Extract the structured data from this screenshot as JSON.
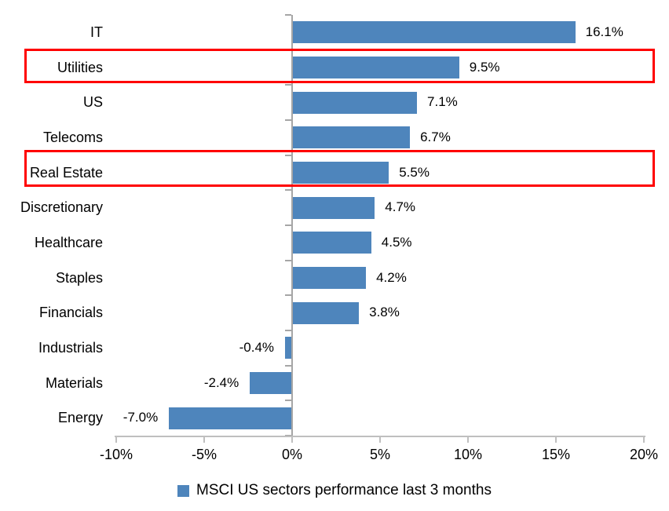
{
  "chart_data": {
    "type": "bar",
    "orientation": "horizontal",
    "title": "",
    "categories": [
      "IT",
      "Utilities",
      "US",
      "Telecoms",
      "Real Estate",
      "Discretionary",
      "Healthcare",
      "Staples",
      "Financials",
      "Industrials",
      "Materials",
      "Energy"
    ],
    "values": [
      16.1,
      9.5,
      7.1,
      6.7,
      5.5,
      4.7,
      4.5,
      4.2,
      3.8,
      -0.4,
      -2.4,
      -7.0
    ],
    "data_labels": [
      "16.1%",
      "9.5%",
      "7.1%",
      "6.7%",
      "5.5%",
      "4.7%",
      "4.5%",
      "4.2%",
      "3.8%",
      "-0.4%",
      "-2.4%",
      "-7.0%"
    ],
    "x_ticks": [
      -10,
      -5,
      0,
      5,
      10,
      15,
      20
    ],
    "x_tick_labels": [
      "-10%",
      "-5%",
      "0%",
      "5%",
      "10%",
      "15%",
      "20%"
    ],
    "xlim": [
      -10,
      20
    ],
    "grid": false,
    "legend": "MSCI US sectors performance last 3 months",
    "legend_position": "bottom",
    "bar_color": "#4E85BC",
    "axis_line_color": "#BFBFBF",
    "zero_line_color": "#A6A6A6",
    "text_color": "#000000",
    "highlight_color": "#FF0000",
    "highlighted_categories": [
      "Utilities",
      "Real Estate"
    ]
  }
}
